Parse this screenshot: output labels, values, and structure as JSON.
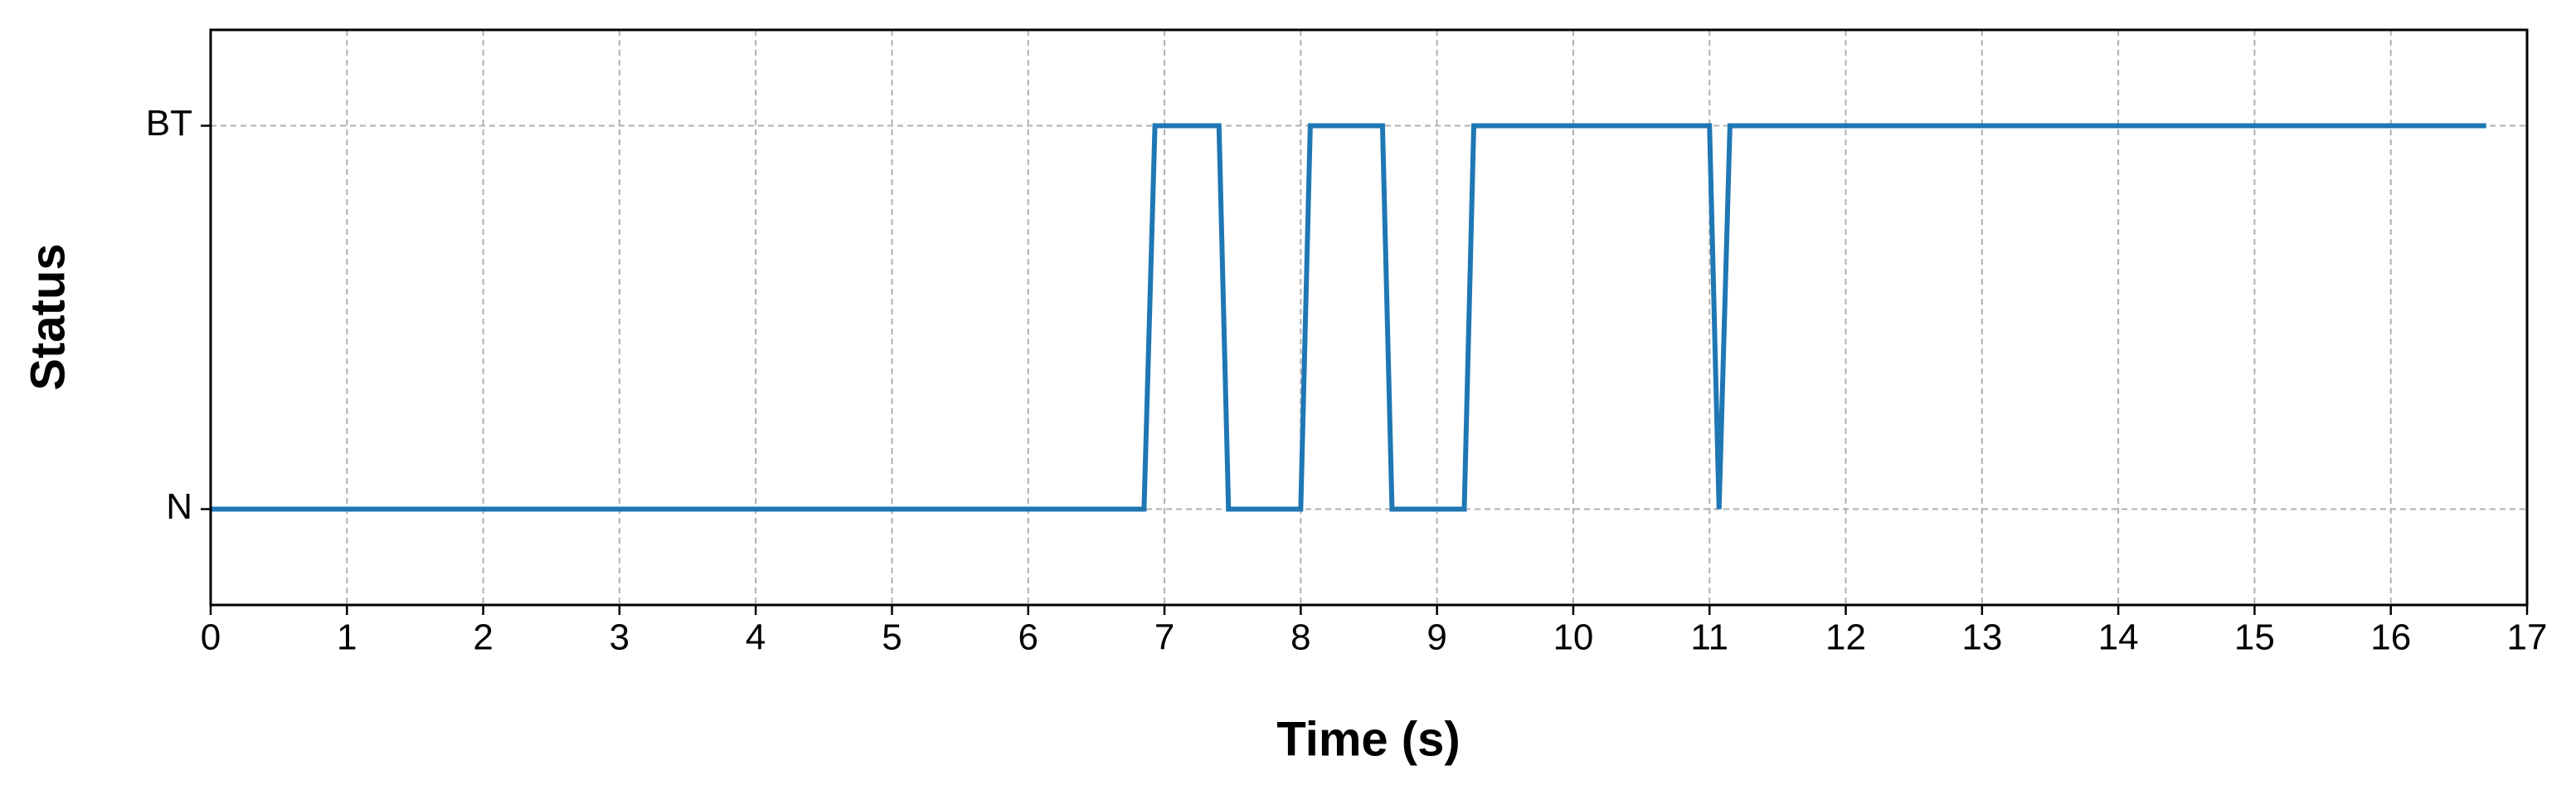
{
  "chart_data": {
    "type": "line",
    "xlabel": "Time (s)",
    "ylabel": "Status",
    "x": [
      0,
      6.85,
      6.93,
      7.4,
      7.47,
      8.0,
      8.07,
      8.6,
      8.67,
      9.2,
      9.27,
      11.0,
      11.07,
      11.15,
      16.7
    ],
    "values": [
      0,
      0,
      1,
      1,
      0,
      0,
      1,
      1,
      0,
      0,
      1,
      1,
      0,
      1,
      1
    ],
    "color": "#1f77b4",
    "xlim": [
      0,
      17
    ],
    "xticks": [
      0,
      1,
      2,
      3,
      4,
      5,
      6,
      7,
      8,
      9,
      10,
      11,
      12,
      13,
      14,
      15,
      16,
      17
    ],
    "ylim": [
      -0.25,
      1.25
    ],
    "yticks": [
      {
        "value": 0,
        "label": "N"
      },
      {
        "value": 1,
        "label": "BT"
      }
    ],
    "grid": true
  }
}
